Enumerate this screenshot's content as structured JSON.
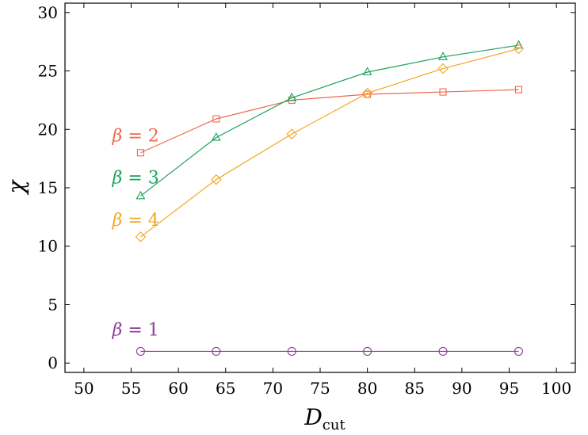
{
  "chart_data": {
    "type": "line",
    "title": "",
    "xlabel": "D",
    "xlabel_sub": "cut",
    "ylabel": "χ",
    "xlim": [
      48,
      102
    ],
    "ylim": [
      -0.8,
      30.8
    ],
    "xticks": [
      50,
      55,
      60,
      65,
      70,
      75,
      80,
      85,
      90,
      95,
      100
    ],
    "yticks": [
      0,
      5,
      10,
      15,
      20,
      25,
      30
    ],
    "grid": false,
    "legend": "none",
    "series": [
      {
        "label": "β = 2",
        "color": "#ee6a4d",
        "marker": "square",
        "x": [
          56,
          64,
          72,
          80,
          88,
          96
        ],
        "y": [
          18.0,
          20.9,
          22.5,
          23.0,
          23.2,
          23.4
        ],
        "label_x": 53,
        "label_y": 19.5
      },
      {
        "label": "β = 3",
        "color": "#1aa35a",
        "marker": "triangle",
        "x": [
          56,
          64,
          72,
          80,
          88,
          96
        ],
        "y": [
          14.3,
          19.3,
          22.7,
          24.9,
          26.2,
          27.2
        ],
        "label_x": 53,
        "label_y": 15.9
      },
      {
        "label": "β = 4",
        "color": "#f5a623",
        "marker": "diamond",
        "x": [
          56,
          64,
          72,
          80,
          88,
          96
        ],
        "y": [
          10.8,
          15.7,
          19.6,
          23.1,
          25.2,
          26.9
        ],
        "label_x": 53,
        "label_y": 12.3
      },
      {
        "label": "β = 1",
        "color": "#8e3d9a",
        "marker": "circle",
        "x": [
          56,
          64,
          72,
          80,
          88,
          96
        ],
        "y": [
          1.0,
          1.0,
          1.0,
          1.0,
          1.0,
          1.0
        ],
        "label_x": 53,
        "label_y": 2.9
      }
    ]
  }
}
